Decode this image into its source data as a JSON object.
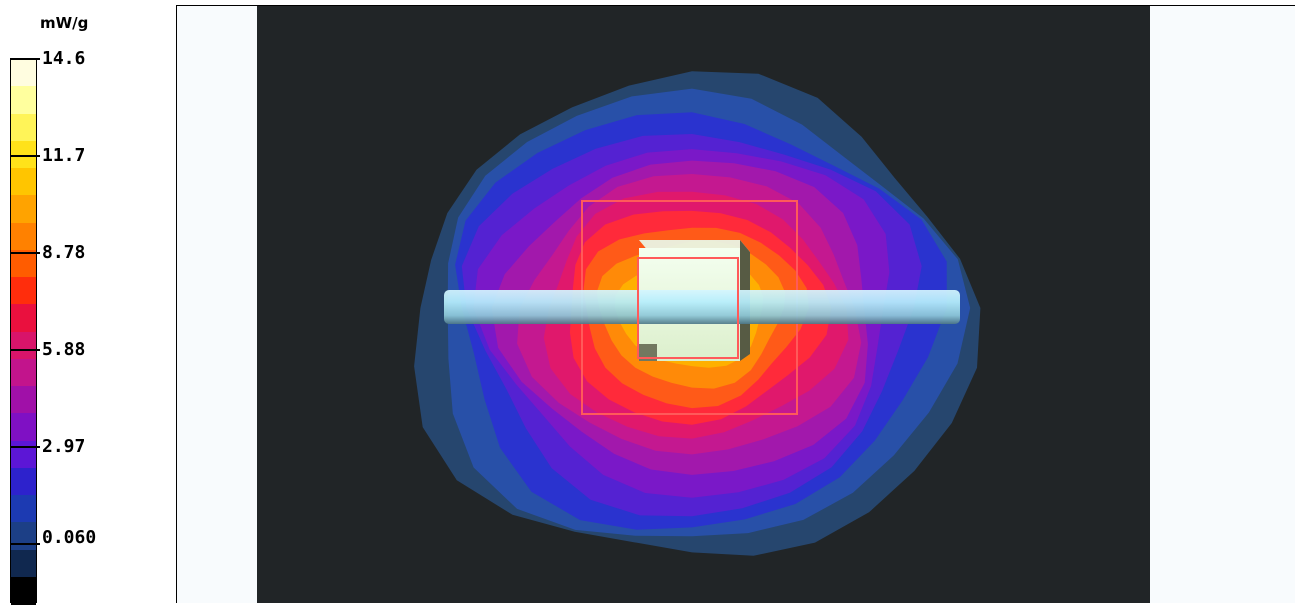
{
  "legend": {
    "unit": "mW/g",
    "ticks": [
      {
        "value": 14.6,
        "label": "14.6"
      },
      {
        "value": 11.7,
        "label": "11.7"
      },
      {
        "value": 8.78,
        "label": "8.78"
      },
      {
        "value": 5.88,
        "label": "5.88"
      },
      {
        "value": 2.97,
        "label": "2.97"
      },
      {
        "value": 0.06,
        "label": "0.060"
      }
    ],
    "colors": [
      "#fffde0",
      "#ffff9e",
      "#fff458",
      "#ffe21a",
      "#ffc500",
      "#ffa300",
      "#ff8100",
      "#ff5c00",
      "#ff2d0c",
      "#ea103e",
      "#d8146a",
      "#c2148c",
      "#a010a8",
      "#7f10c4",
      "#5c16d6",
      "#2d22cc",
      "#1c3ab2",
      "#1c3f86",
      "#10284f",
      "#000000"
    ]
  },
  "scene": {
    "background": "#212527",
    "contour_colors": [
      "#26466e",
      "#2850a8",
      "#2a33cf",
      "#5422d2",
      "#7a18c8",
      "#a218ac",
      "#c41890",
      "#e0186c",
      "#ff2a3a",
      "#ff5a18",
      "#ff8a08",
      "#ffb000",
      "#ffd31a"
    ],
    "box_color": "#ff5a5a",
    "cylinder_color": "#b6eefc",
    "cube_color": "#eefce2"
  }
}
